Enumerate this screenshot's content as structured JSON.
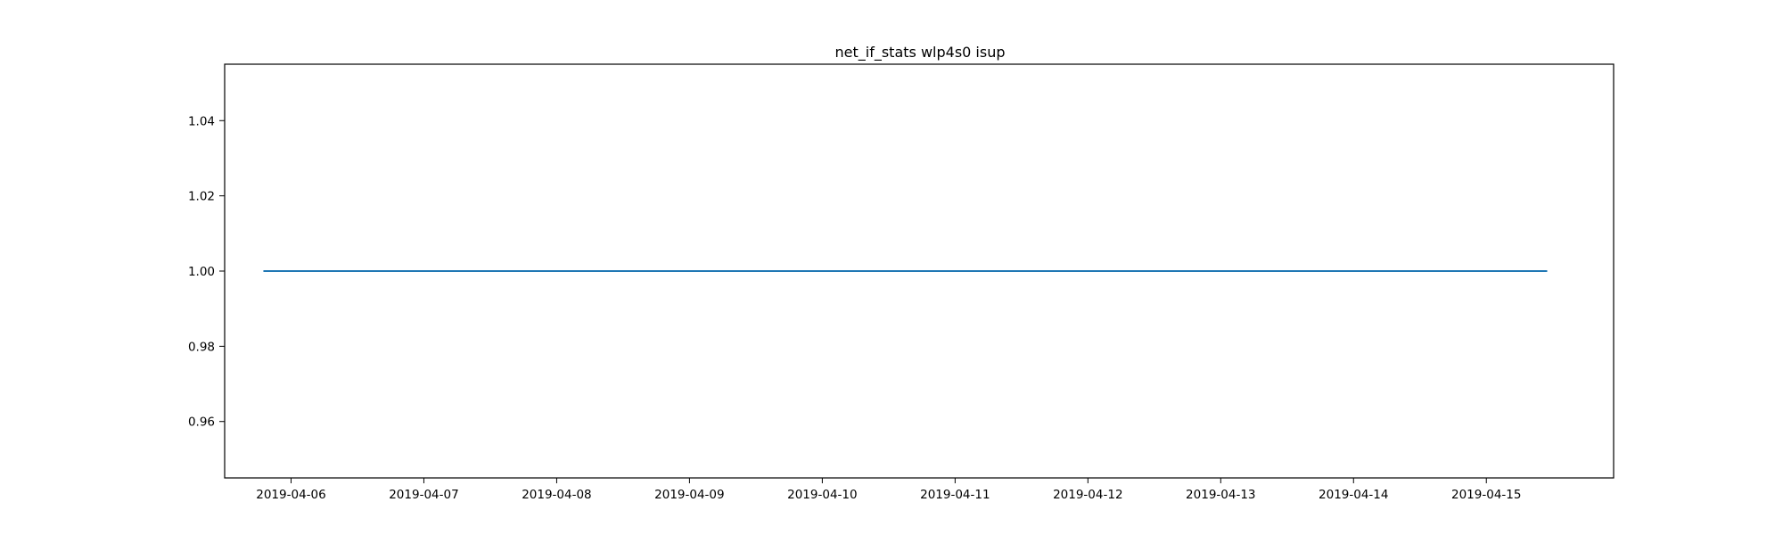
{
  "chart_data": {
    "type": "line",
    "title": "net_if_stats wlp4s0 isup",
    "xlabel": "",
    "ylabel": "",
    "x_axis_type": "date",
    "xlim": [
      "2019-04-05T12:00",
      "2019-04-15T23:00"
    ],
    "ylim": [
      0.945,
      1.055
    ],
    "x_ticks": [
      "2019-04-06",
      "2019-04-07",
      "2019-04-08",
      "2019-04-09",
      "2019-04-10",
      "2019-04-11",
      "2019-04-12",
      "2019-04-13",
      "2019-04-14",
      "2019-04-15"
    ],
    "y_ticks": [
      "0.96",
      "0.98",
      "1.00",
      "1.02",
      "1.04"
    ],
    "grid": false,
    "legend": "none",
    "series": [
      {
        "color": "#1f77b4",
        "points": [
          {
            "x": "2019-04-05T19:00",
            "y": 1.0
          },
          {
            "x": "2019-04-15T11:00",
            "y": 1.0
          }
        ]
      }
    ]
  }
}
